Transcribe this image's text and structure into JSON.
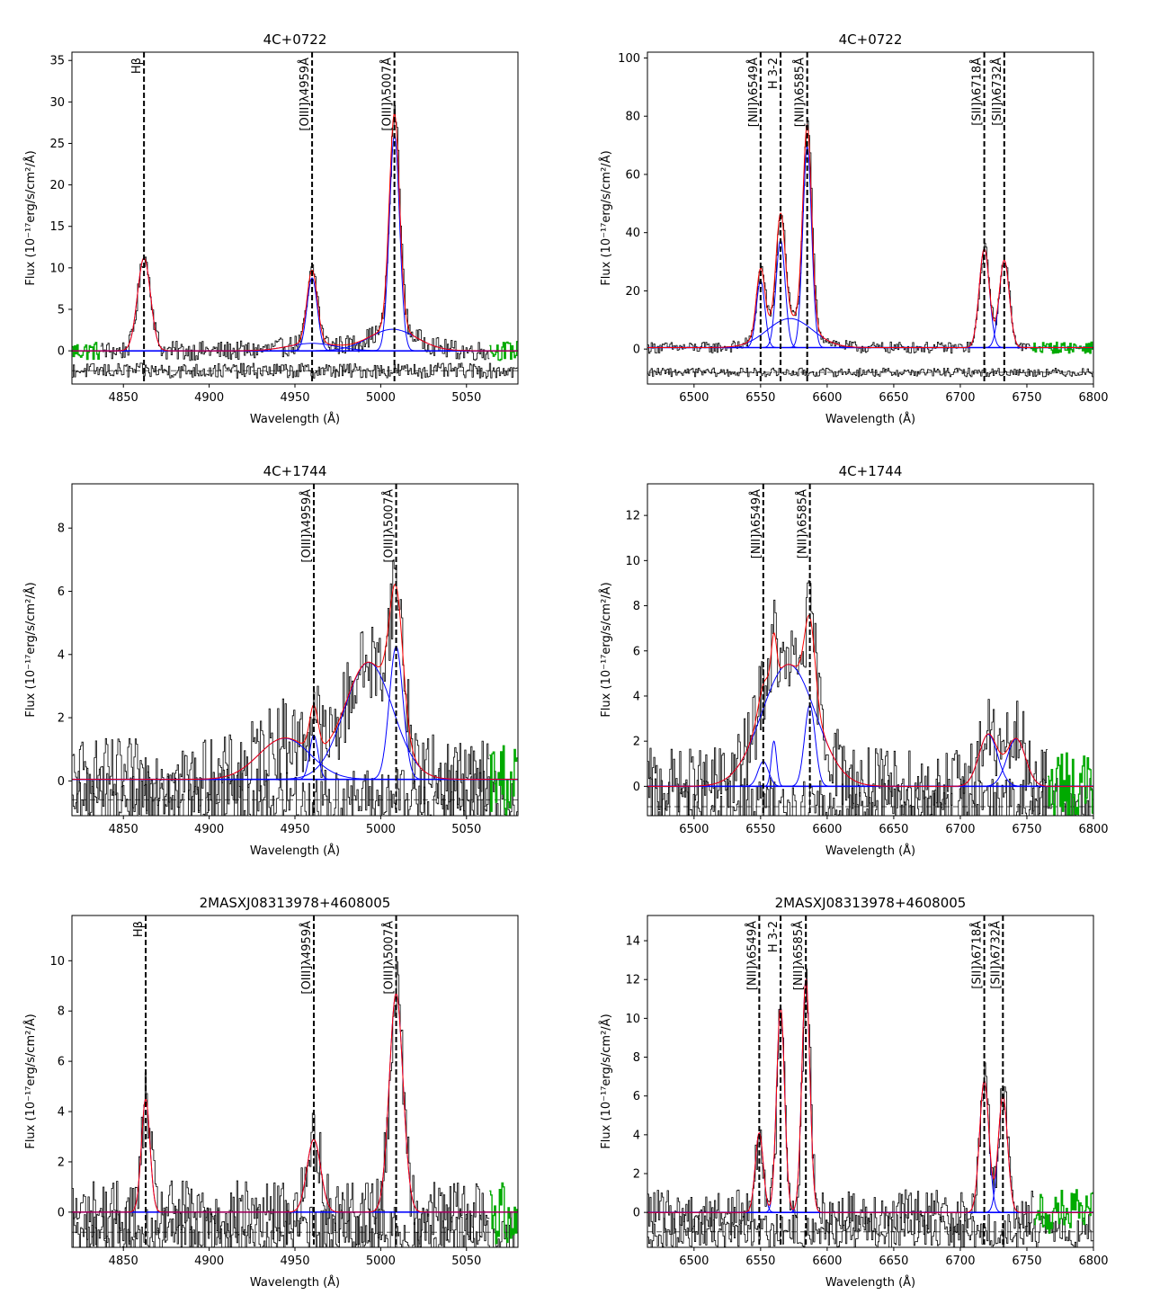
{
  "figure": {
    "kind": "emission-line spectral fits",
    "panels": 6
  },
  "colors": {
    "data": "#000000",
    "model": "#ff0000",
    "component": "#0000ff",
    "continuum_region": "#00aa00",
    "residual": "#000000",
    "line_marker": "#000000"
  },
  "chart_data": [
    {
      "type": "line",
      "title": "4C+0722",
      "xlabel": "Wavelength (Å)",
      "ylabel": "Flux (10⁻¹⁷erg/s/cm²/Å)",
      "xlim": [
        4820,
        5080
      ],
      "ylim": [
        -4,
        36
      ],
      "xticks": [
        4850,
        4900,
        4950,
        5000,
        5050
      ],
      "yticks": [
        0,
        5,
        10,
        15,
        20,
        25,
        30,
        35
      ],
      "lines": [
        {
          "label": "Hβ",
          "x": 4862
        },
        {
          "label": "[OIII]λ4959Å",
          "x": 4960
        },
        {
          "label": "[OIII]λ5007Å",
          "x": 5008
        }
      ],
      "components": [
        {
          "center": 4862,
          "amp": 11.2,
          "sigma": 3.8
        },
        {
          "center": 4960,
          "amp": 8.8,
          "sigma": 3.0
        },
        {
          "center": 5008,
          "amp": 26.0,
          "sigma": 3.0
        },
        {
          "center": 4960,
          "amp": 0.9,
          "sigma": 14
        },
        {
          "center": 5007,
          "amp": 2.6,
          "sigma": 14
        }
      ],
      "continuum": 0.0,
      "noise": 0.9,
      "residual_offset": -2.4,
      "continuum_windows": [
        [
          4820,
          4836
        ],
        [
          5063,
          5080
        ]
      ]
    },
    {
      "type": "line",
      "title": "4C+0722",
      "xlabel": "Wavelength (Å)",
      "ylabel": "Flux (10⁻¹⁷erg/s/cm²/Å)",
      "xlim": [
        6465,
        6800
      ],
      "ylim": [
        -12,
        102
      ],
      "xticks": [
        6500,
        6550,
        6600,
        6650,
        6700,
        6750,
        6800
      ],
      "yticks": [
        0,
        20,
        40,
        60,
        80,
        100
      ],
      "lines": [
        {
          "label": "[NII]λ6549Å",
          "x": 6550
        },
        {
          "label": "H 3-2",
          "x": 6565
        },
        {
          "label": "[NII]λ6585Å",
          "x": 6585
        },
        {
          "label": "[SII]λ6718Å",
          "x": 6718
        },
        {
          "label": "[SII]λ6732Å",
          "x": 6733
        }
      ],
      "components": [
        {
          "center": 6550,
          "amp": 23,
          "sigma": 3.2
        },
        {
          "center": 6565,
          "amp": 37,
          "sigma": 3.4
        },
        {
          "center": 6585,
          "amp": 69,
          "sigma": 3.3
        },
        {
          "center": 6572,
          "amp": 10,
          "sigma": 17
        },
        {
          "center": 6718,
          "amp": 34,
          "sigma": 3.8
        },
        {
          "center": 6733,
          "amp": 30,
          "sigma": 3.8
        }
      ],
      "continuum": 0.5,
      "noise": 1.5,
      "residual_offset": -8,
      "continuum_windows": [
        [
          6752,
          6800
        ]
      ]
    },
    {
      "type": "line",
      "title": "4C+1744",
      "xlabel": "Wavelength (Å)",
      "ylabel": "Flux (10⁻¹⁷erg/s/cm²/Å)",
      "xlim": [
        4820,
        5080
      ],
      "ylim": [
        -1.1,
        9.4
      ],
      "xticks": [
        4850,
        4900,
        4950,
        5000,
        5050
      ],
      "yticks": [
        0,
        2,
        4,
        6,
        8
      ],
      "lines": [
        {
          "label": "[OIII]λ4959Å",
          "x": 4961
        },
        {
          "label": "[OIII]λ5007Å",
          "x": 5009
        }
      ],
      "components": [
        {
          "center": 4944,
          "amp": 1.3,
          "sigma": 15
        },
        {
          "center": 4961,
          "amp": 1.4,
          "sigma": 2.5
        },
        {
          "center": 4993,
          "amp": 3.7,
          "sigma": 14
        },
        {
          "center": 5009,
          "amp": 4.2,
          "sigma": 4
        }
      ],
      "continuum": 0.05,
      "noise": 1.0,
      "residual_offset": -0.6,
      "continuum_windows": [
        [
          5063,
          5080
        ]
      ]
    },
    {
      "type": "line",
      "title": "4C+1744",
      "xlabel": "Wavelength (Å)",
      "ylabel": "Flux (10⁻¹⁷erg/s/cm²/Å)",
      "xlim": [
        6465,
        6800
      ],
      "ylim": [
        -1.3,
        13.4
      ],
      "xticks": [
        6500,
        6550,
        6600,
        6650,
        6700,
        6750,
        6800
      ],
      "yticks": [
        0,
        2,
        4,
        6,
        8,
        10,
        12
      ],
      "lines": [
        {
          "label": "[NII]λ6549Å",
          "x": 6552
        },
        {
          "label": "[NII]λ6585Å",
          "x": 6587
        }
      ],
      "components": [
        {
          "center": 6552,
          "amp": 1.1,
          "sigma": 4
        },
        {
          "center": 6560,
          "amp": 2.0,
          "sigma": 2
        },
        {
          "center": 6571,
          "amp": 5.4,
          "sigma": 20
        },
        {
          "center": 6587,
          "amp": 3.6,
          "sigma": 4
        },
        {
          "center": 6721,
          "amp": 2.3,
          "sigma": 7
        },
        {
          "center": 6742,
          "amp": 2.1,
          "sigma": 7
        }
      ],
      "continuum": 0.0,
      "noise": 1.3,
      "residual_offset": -0.9,
      "continuum_windows": [
        [
          6765,
          6800
        ]
      ]
    },
    {
      "type": "line",
      "title": "2MASXJ08313978+4608005",
      "xlabel": "Wavelength (Å)",
      "ylabel": "Flux (10⁻¹⁷erg/s/cm²/Å)",
      "xlim": [
        4820,
        5080
      ],
      "ylim": [
        -1.4,
        11.8
      ],
      "xticks": [
        4850,
        4900,
        4950,
        5000,
        5050
      ],
      "yticks": [
        0,
        2,
        4,
        6,
        8,
        10
      ],
      "lines": [
        {
          "label": "Hβ",
          "x": 4863
        },
        {
          "label": "[OIII]λ4959Å",
          "x": 4961
        },
        {
          "label": "[OIII]λ5007Å",
          "x": 5009
        }
      ],
      "components": [
        {
          "center": 4863,
          "amp": 4.5,
          "sigma": 2.5
        },
        {
          "center": 4961,
          "amp": 2.9,
          "sigma": 4
        },
        {
          "center": 5009,
          "amp": 8.7,
          "sigma": 4
        }
      ],
      "continuum": 0.0,
      "noise": 1.0,
      "residual_offset": -0.8,
      "continuum_windows": [
        [
          5063,
          5080
        ]
      ]
    },
    {
      "type": "line",
      "title": "2MASXJ08313978+4608005",
      "xlabel": "Wavelength (Å)",
      "ylabel": "Flux (10⁻¹⁷erg/s/cm²/Å)",
      "xlim": [
        6465,
        6800
      ],
      "ylim": [
        -1.8,
        15.3
      ],
      "xticks": [
        6500,
        6550,
        6600,
        6650,
        6700,
        6750,
        6800
      ],
      "yticks": [
        0,
        2,
        4,
        6,
        8,
        10,
        12,
        14
      ],
      "lines": [
        {
          "label": "[NII]λ6549Å",
          "x": 6549
        },
        {
          "label": "H 3-2",
          "x": 6565
        },
        {
          "label": "[NII]λ6585Å",
          "x": 6584
        },
        {
          "label": "[SII]λ6718Å",
          "x": 6718
        },
        {
          "label": "[SII]λ6732Å",
          "x": 6732
        }
      ],
      "components": [
        {
          "center": 6549,
          "amp": 4.1,
          "sigma": 3
        },
        {
          "center": 6565,
          "amp": 10.6,
          "sigma": 3
        },
        {
          "center": 6584,
          "amp": 12.0,
          "sigma": 3
        },
        {
          "center": 6718,
          "amp": 6.8,
          "sigma": 3.5
        },
        {
          "center": 6732,
          "amp": 6.0,
          "sigma": 3.5
        }
      ],
      "continuum": 0.0,
      "noise": 0.9,
      "residual_offset": -1.0,
      "continuum_windows": [
        [
          6755,
          6800
        ]
      ]
    }
  ]
}
